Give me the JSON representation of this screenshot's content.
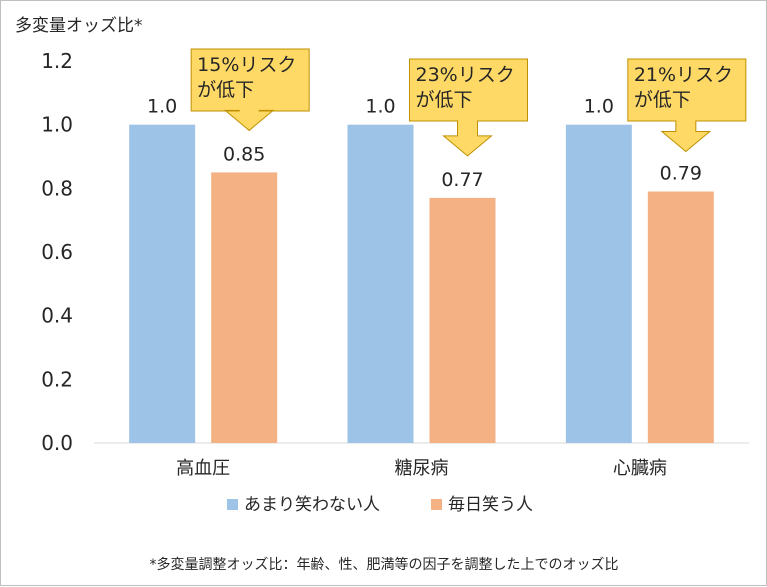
{
  "chart_data": {
    "type": "bar",
    "ylabel": "多変量オッズ比*",
    "ylim": [
      0,
      1.2
    ],
    "yticks": [
      "0.0",
      "0.2",
      "0.4",
      "0.6",
      "0.8",
      "1.0",
      "1.2"
    ],
    "grid": false,
    "legend_position": "bottom",
    "categories": [
      "高血圧",
      "糖尿病",
      "心臓病"
    ],
    "series": [
      {
        "name": "あまり笑わない人",
        "color": "#9dc3e6",
        "values": [
          1.0,
          1.0,
          1.0
        ],
        "labels": [
          "1.0",
          "1.0",
          "1.0"
        ]
      },
      {
        "name": "毎日笑う人",
        "color": "#f4b183",
        "values": [
          0.85,
          0.77,
          0.79
        ],
        "labels": [
          "0.85",
          "0.77",
          "0.79"
        ]
      }
    ],
    "annotations": [
      {
        "line1": "15%リスク",
        "line2": "が低下"
      },
      {
        "line1": "23%リスク",
        "line2": "が低下"
      },
      {
        "line1": "21%リスク",
        "line2": "が低下"
      }
    ],
    "callout_color": "#ffd966",
    "footnote": "*多変量調整オッズ比：年齢、性、肥満等の因子を調整した上でのオッズ比"
  }
}
